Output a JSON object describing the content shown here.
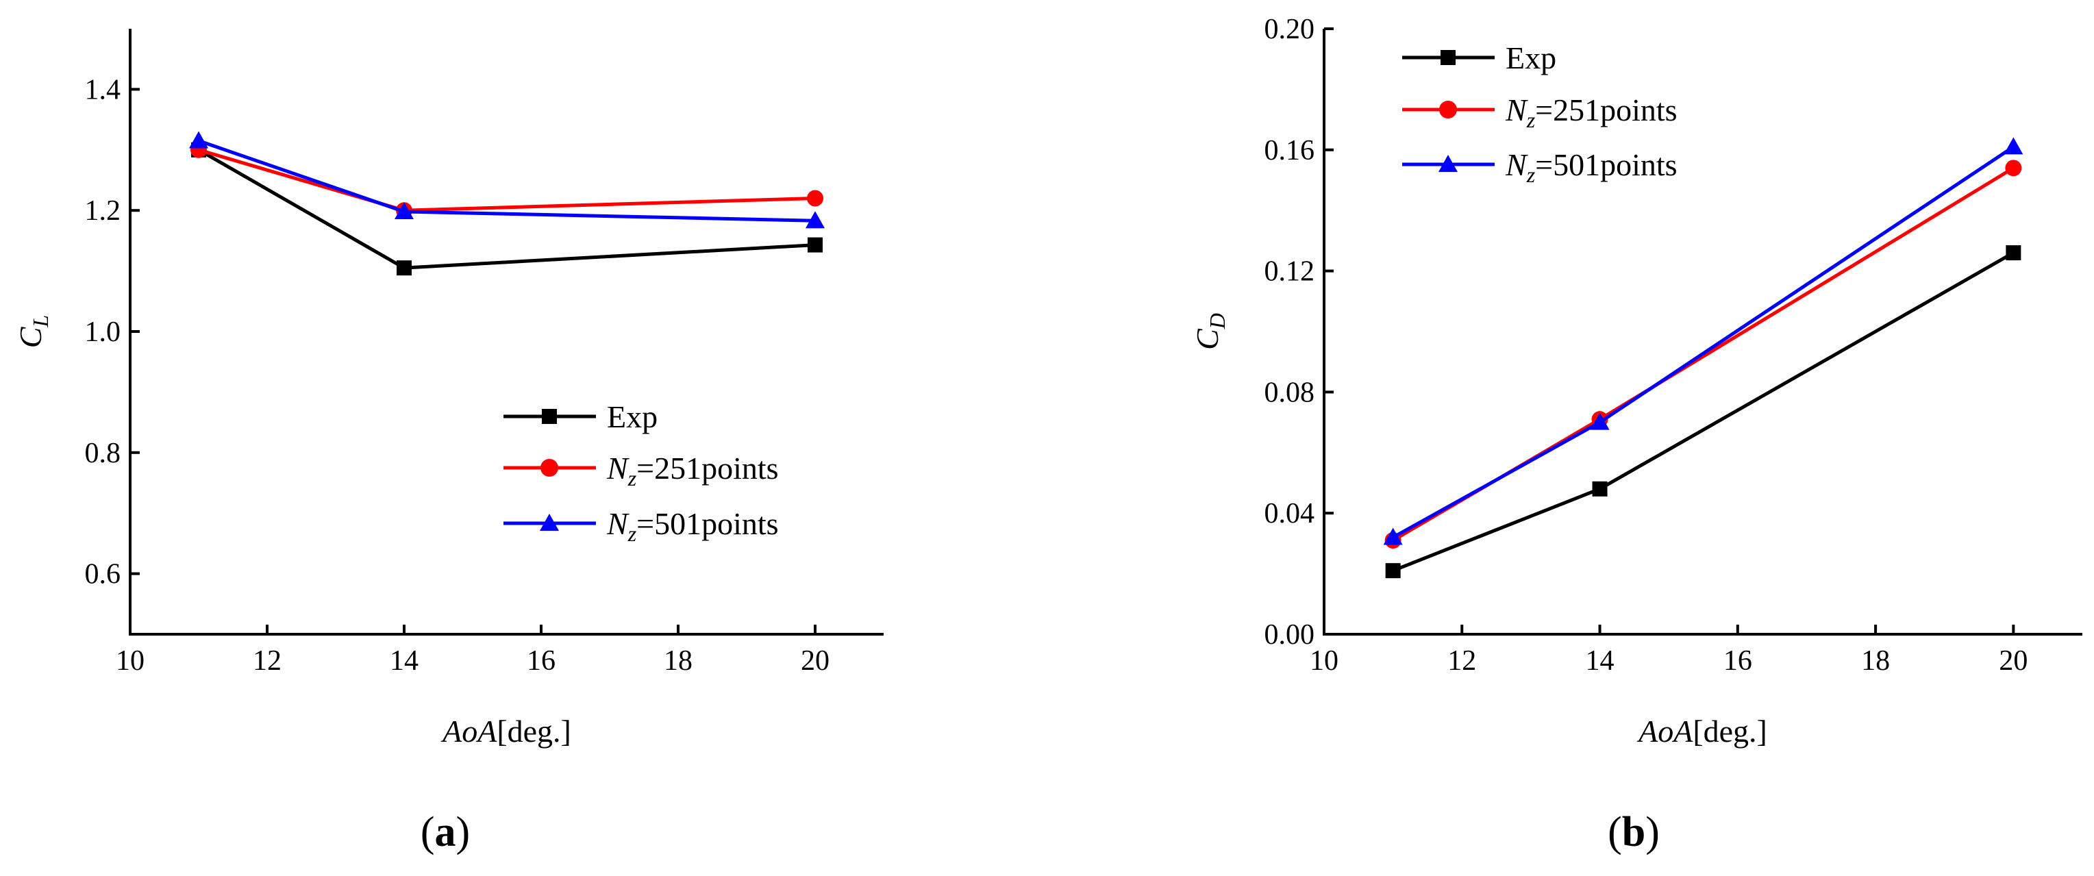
{
  "chart_data": [
    {
      "type": "line",
      "panel_label": "(a)",
      "panel_letter": "a",
      "xlabel_italic": "AoA",
      "xlabel_rest": "[deg.]",
      "ylabel_main": "C",
      "ylabel_sub": "L",
      "xlim": [
        10,
        21
      ],
      "ylim": [
        0.5,
        1.5
      ],
      "x_ticks": [
        "10",
        "12",
        "14",
        "16",
        "18",
        "20"
      ],
      "y_ticks": [
        "0.6",
        "0.8",
        "1.0",
        "1.2",
        "1.4"
      ],
      "x": [
        11,
        14,
        20
      ],
      "legend_position": "center-right",
      "series": [
        {
          "name": "Exp",
          "name_main": "Exp",
          "name_sub": "",
          "name_rest": "",
          "color": "#000000",
          "marker": "square",
          "values": [
            1.3,
            1.105,
            1.143
          ]
        },
        {
          "name": "Nz=251points",
          "name_main": "N",
          "name_sub": "z",
          "name_rest": "=251points",
          "color": "#ff0000",
          "marker": "circle",
          "values": [
            1.3,
            1.2,
            1.22
          ]
        },
        {
          "name": "Nz=501points",
          "name_main": "N",
          "name_sub": "z",
          "name_rest": "=501points",
          "color": "#0000ff",
          "marker": "triangle",
          "values": [
            1.315,
            1.198,
            1.183
          ]
        }
      ]
    },
    {
      "type": "line",
      "panel_label": "(b)",
      "panel_letter": "b",
      "xlabel_italic": "AoA",
      "xlabel_rest": "[deg.]",
      "ylabel_main": "C",
      "ylabel_sub": "D",
      "xlim": [
        10,
        21
      ],
      "ylim": [
        0.0,
        0.2
      ],
      "x_ticks": [
        "10",
        "12",
        "14",
        "16",
        "18",
        "20"
      ],
      "y_ticks": [
        "0.00",
        "0.04",
        "0.08",
        "0.12",
        "0.16",
        "0.20"
      ],
      "x": [
        11,
        14,
        20
      ],
      "legend_position": "top-left",
      "series": [
        {
          "name": "Exp",
          "name_main": "Exp",
          "name_sub": "",
          "name_rest": "",
          "color": "#000000",
          "marker": "square",
          "values": [
            0.021,
            0.048,
            0.126
          ]
        },
        {
          "name": "Nz=251points",
          "name_main": "N",
          "name_sub": "z",
          "name_rest": "=251points",
          "color": "#ff0000",
          "marker": "circle",
          "values": [
            0.031,
            0.071,
            0.154
          ]
        },
        {
          "name": "Nz=501points",
          "name_main": "N",
          "name_sub": "z",
          "name_rest": "=501points",
          "color": "#0000ff",
          "marker": "triangle",
          "values": [
            0.032,
            0.07,
            0.161
          ]
        }
      ]
    }
  ]
}
